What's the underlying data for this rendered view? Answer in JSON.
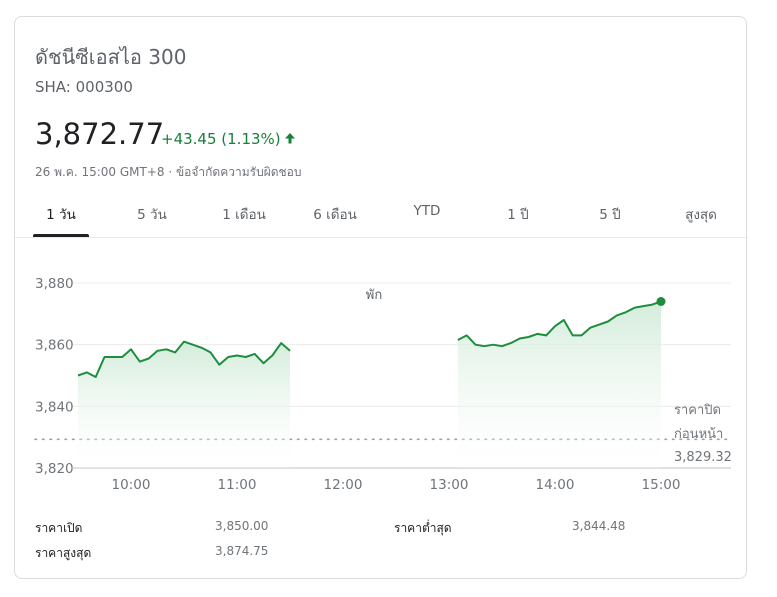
{
  "header": {
    "title": "ดัชนีซีเอสไอ 300",
    "ticker": "SHA: 000300",
    "price": "3,872.77",
    "change": "+43.45 (1.13%)",
    "timestamp": "26 พ.ค. 15:00 GMT+8 · ข้อจำกัดความรับผิดชอบ"
  },
  "tabs": [
    {
      "label": "1 วัน",
      "active": true
    },
    {
      "label": "5 วัน"
    },
    {
      "label": "1 เดือน"
    },
    {
      "label": "6 เดือน"
    },
    {
      "label": "YTD"
    },
    {
      "label": "1 ปี"
    },
    {
      "label": "5 ปี"
    },
    {
      "label": "สูงสุด"
    }
  ],
  "colors": {
    "line": "#1e8e3e",
    "change": "#188038",
    "fill_top": "#ceead6"
  },
  "chart_data": {
    "type": "area",
    "y_ticks": [
      "3,880",
      "3,860",
      "3,840",
      "3,820"
    ],
    "y_values": [
      3880,
      3860,
      3840,
      3820
    ],
    "x_ticks": [
      "10:00",
      "11:00",
      "12:00",
      "13:00",
      "14:00",
      "15:00"
    ],
    "ylim": [
      3820,
      3880
    ],
    "break_label": "พัก",
    "previous_close": {
      "label_line1": "ราคาปิด",
      "label_line2": "ก่อนหน้า",
      "value_text": "3,829.32",
      "value": 3829.32
    },
    "morning": {
      "x": [
        "9:30",
        "9:35",
        "9:40",
        "9:45",
        "9:50",
        "9:55",
        "10:00",
        "10:05",
        "10:10",
        "10:15",
        "10:20",
        "10:25",
        "10:30",
        "10:35",
        "10:40",
        "10:45",
        "10:50",
        "10:55",
        "11:00",
        "11:05",
        "11:10",
        "11:15",
        "11:20",
        "11:25",
        "11:30"
      ],
      "y": [
        3850.0,
        3851.0,
        3849.5,
        3856.0,
        3856.0,
        3856.0,
        3858.5,
        3854.5,
        3855.5,
        3858.0,
        3858.5,
        3857.5,
        3861.0,
        3860.0,
        3859.0,
        3857.5,
        3853.5,
        3856.0,
        3856.5,
        3856.0,
        3857.0,
        3854.0,
        3856.5,
        3860.5,
        3858.0
      ]
    },
    "afternoon": {
      "x": [
        "13:05",
        "13:10",
        "13:15",
        "13:20",
        "13:25",
        "13:30",
        "13:35",
        "13:40",
        "13:45",
        "13:50",
        "13:55",
        "14:00",
        "14:05",
        "14:10",
        "14:15",
        "14:20",
        "14:25",
        "14:30",
        "14:35",
        "14:40",
        "14:45",
        "14:50",
        "14:55",
        "15:00"
      ],
      "y": [
        3861.5,
        3863.0,
        3860.0,
        3859.5,
        3860.0,
        3859.5,
        3860.5,
        3862.0,
        3862.5,
        3863.5,
        3863.0,
        3866.0,
        3868.0,
        3863.0,
        3863.0,
        3865.5,
        3866.5,
        3867.5,
        3869.5,
        3870.5,
        3872.0,
        3872.5,
        3873.0,
        3874.0
      ]
    }
  },
  "stats": {
    "open_label": "ราคาเปิด",
    "open_value": "3,850.00",
    "high_label": "ราคาสูงสุด",
    "high_value": "3,874.75",
    "low_label": "ราคาต่ำสุด",
    "low_value": "3,844.48"
  }
}
